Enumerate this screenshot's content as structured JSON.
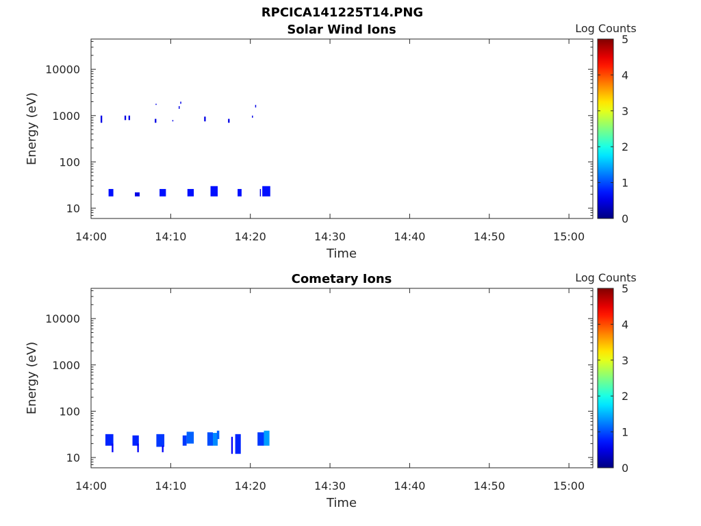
{
  "figure_title": "RPCICA141225T14.PNG",
  "chart_data": [
    {
      "type": "heatmap",
      "title": "Solar Wind Ions",
      "xlabel": "Time",
      "ylabel": "Energy (eV)",
      "x_tick_labels": [
        "14:00",
        "14:10",
        "14:20",
        "14:30",
        "14:40",
        "14:50",
        "15:00"
      ],
      "y_tick_labels": [
        "10",
        "100",
        "1000",
        "10000"
      ],
      "y_tick_values": [
        10,
        100,
        1000,
        10000
      ],
      "y_scale": "log",
      "xlim_minutes_after_14_00": [
        0,
        63
      ],
      "ylim": [
        6,
        45000
      ],
      "colorbar": {
        "label": "Log Counts",
        "ticks": [
          "0",
          "1",
          "2",
          "3",
          "4",
          "5"
        ],
        "range": [
          0,
          5
        ],
        "colormap": "jet"
      },
      "cells": [
        [
          1.2,
          1.4,
          700,
          1000,
          0.5
        ],
        [
          2.2,
          2.8,
          18,
          26,
          0.7
        ],
        [
          4.2,
          4.4,
          800,
          1000,
          0.5
        ],
        [
          4.7,
          4.9,
          800,
          1000,
          0.5
        ],
        [
          5.5,
          6.1,
          18,
          22,
          0.5
        ],
        [
          8.0,
          8.2,
          700,
          850,
          0.5
        ],
        [
          8.1,
          8.2,
          1700,
          1800,
          0.5
        ],
        [
          8.6,
          9.4,
          18,
          26,
          0.7
        ],
        [
          10.2,
          10.3,
          750,
          800,
          0.5
        ],
        [
          11.0,
          11.1,
          1400,
          1600,
          0.5
        ],
        [
          11.2,
          11.3,
          1800,
          2000,
          0.5
        ],
        [
          12.1,
          12.9,
          18,
          26,
          0.7
        ],
        [
          14.2,
          14.4,
          750,
          950,
          0.5
        ],
        [
          15.0,
          15.9,
          18,
          30,
          0.7
        ],
        [
          17.2,
          17.4,
          700,
          850,
          0.5
        ],
        [
          18.4,
          18.9,
          18,
          26,
          0.7
        ],
        [
          20.2,
          20.3,
          900,
          1000,
          0.5
        ],
        [
          20.6,
          20.7,
          1500,
          1700,
          0.5
        ],
        [
          21.2,
          21.3,
          18,
          26,
          0.5
        ],
        [
          21.5,
          22.5,
          18,
          30,
          0.7
        ]
      ]
    },
    {
      "type": "heatmap",
      "title": "Cometary Ions",
      "xlabel": "Time",
      "ylabel": "Energy (eV)",
      "x_tick_labels": [
        "14:00",
        "14:10",
        "14:20",
        "14:30",
        "14:40",
        "14:50",
        "15:00"
      ],
      "y_tick_labels": [
        "10",
        "100",
        "1000",
        "10000"
      ],
      "y_tick_values": [
        10,
        100,
        1000,
        10000
      ],
      "y_scale": "log",
      "xlim_minutes_after_14_00": [
        0,
        63
      ],
      "ylim": [
        6,
        45000
      ],
      "colorbar": {
        "label": "Log Counts",
        "ticks": [
          "0",
          "1",
          "2",
          "3",
          "4",
          "5"
        ],
        "range": [
          0,
          5
        ],
        "colormap": "jet"
      },
      "cells": [
        [
          1.8,
          2.8,
          18,
          32,
          0.8
        ],
        [
          2.6,
          2.8,
          13,
          20,
          0.6
        ],
        [
          5.2,
          6.0,
          18,
          30,
          0.8
        ],
        [
          5.8,
          6.0,
          13,
          20,
          0.6
        ],
        [
          8.2,
          9.2,
          17,
          32,
          0.9
        ],
        [
          8.9,
          9.1,
          13,
          18,
          0.6
        ],
        [
          11.5,
          12.0,
          18,
          30,
          0.9
        ],
        [
          12.0,
          12.9,
          20,
          36,
          1.1
        ],
        [
          14.6,
          15.3,
          18,
          35,
          1.0
        ],
        [
          15.3,
          15.9,
          18,
          34,
          1.3
        ],
        [
          15.8,
          16.1,
          25,
          38,
          1.1
        ],
        [
          17.6,
          17.8,
          12,
          28,
          0.6
        ],
        [
          18.1,
          18.8,
          12,
          32,
          0.8
        ],
        [
          20.9,
          21.7,
          18,
          35,
          0.9
        ],
        [
          21.7,
          22.4,
          18,
          38,
          1.4
        ]
      ]
    }
  ]
}
